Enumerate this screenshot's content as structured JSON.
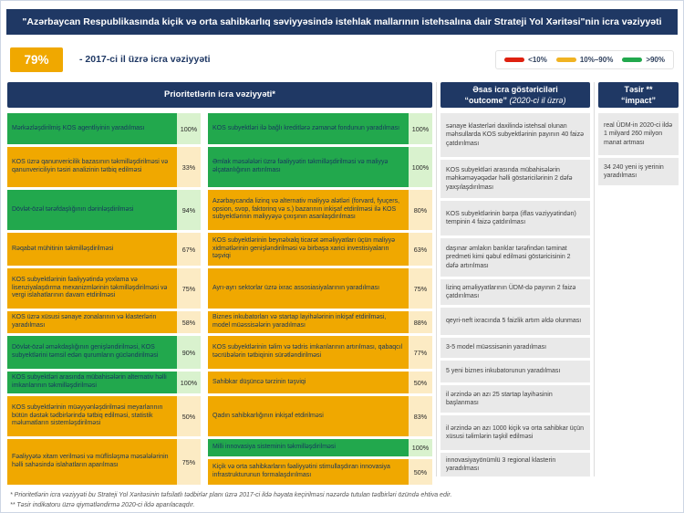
{
  "title": "\"Azərbaycan Respublikasında kiçik və orta sahibkarlıq səviyyəsində istehlak mallarının istehsalına dair Strateji Yol Xəritəsi\"nin icra vəziyyəti",
  "summary": {
    "value": "79%",
    "label": "- 2017-ci il üzrə icra vəziyyəti"
  },
  "colors": {
    "navy": "#1F3864",
    "green": "#22A84D",
    "green_light": "#D9F2CE",
    "yellow": "#F0A800",
    "yellow_light": "#FCEBC4",
    "red": "#DE2110",
    "gray_cell": "#E9E9E9"
  },
  "legend": [
    {
      "label": "<10%",
      "color": "#DE2110"
    },
    {
      "label": "10%–90%",
      "color": "#F0B323"
    },
    {
      "label": ">90%",
      "color": "#22A84D"
    }
  ],
  "table": {
    "header_left": "Prioritetlərin icra vəziyyəti*",
    "header_outcome_line1": "Əsas icra göstəriciləri",
    "header_outcome_quote": "“outcome”",
    "header_outcome_paren": "(2020-ci il üzrə)",
    "header_impact_line1": "Təsir **",
    "header_impact_line2": "“impact”",
    "priority_rows": [
      {
        "left": {
          "text": "Mərkəzləşdirilmiş KOS agentliyinin yaradılması",
          "pct": "100%",
          "status": "green"
        },
        "right": [
          {
            "text": "KOS subyektləri ilə bağlı kreditlərə zəmanət fondunun yaradılması",
            "pct": "100%",
            "status": "green"
          }
        ]
      },
      {
        "left": {
          "text": "KOS üzrə qanunvericilik bazasının təkmilləşdirilməsi və qanunvericiliyin təsiri analizinin tətbiq edilməsi",
          "pct": "33%",
          "status": "yellow"
        },
        "right": [
          {
            "text": "Əmlak məsələləri üzrə fəaliyyətin təkmilləşdirilməsi və maliyyə əlçatanlığının artırılması",
            "pct": "100%",
            "status": "green"
          }
        ]
      },
      {
        "left": {
          "text": "Dövlət-özəl tərəfdaşlığının dərinləşdirilməsi",
          "pct": "94%",
          "status": "green"
        },
        "right": [
          {
            "text": "Azərbaycanda lizinq və alternativ maliyyə alətləri (forvard, fyuçers, opsion, svop, faktorinq və s.) bazarının inkişaf etdirilməsi ilə KOS subyektlərinin maliyyəyə çıxışının asanlaşdırılması",
            "pct": "80%",
            "status": "yellow"
          }
        ]
      },
      {
        "left": {
          "text": "Rəqabət mühitinin təkmilləşdirilməsi",
          "pct": "67%",
          "status": "yellow"
        },
        "right": [
          {
            "text": "KOS subyektlərinin beynəlxalq ticarət əməliyyatları üçün maliyyə xidmətlərinin genişləndirilməsi və birbaşa xarici investisiyaların təşviqi",
            "pct": "63%",
            "status": "yellow"
          }
        ]
      },
      {
        "left": {
          "text": "KOS subyektlərinin fəaliyyətində yoxlama və lisenziyalaşdırma mexanizmlərinin təkmilləşdirilməsi və vergi islahatlarının davam etdirilməsi",
          "pct": "75%",
          "status": "yellow"
        },
        "right": [
          {
            "text": "Ayrı-ayrı sektorlar üzrə ixrac assosiasiyalarının yaradılması",
            "pct": "75%",
            "status": "yellow"
          }
        ]
      },
      {
        "left": {
          "text": "KOS üzrə xüsusi sənaye zonalarının və klasterlərin yaradılması",
          "pct": "58%",
          "status": "yellow"
        },
        "right": [
          {
            "text": "Biznes inkubatorları və startap layihələrinin inkişaf etdirilməsi, model müəssisələrin yaradılması",
            "pct": "88%",
            "status": "yellow"
          }
        ]
      },
      {
        "left": {
          "text": "Dövlət-özəl əməkdaşlığının genişləndirilməsi, KOS subyektlərini təmsil edən qurumların gücləndirilməsi",
          "pct": "90%",
          "status": "green"
        },
        "right": [
          {
            "text": "KOS subyektlərinin təlim və tədris imkanlarının artırılması, qabaqcıl təcrübələrin tətbiqinin sürətləndirilməsi",
            "pct": "77%",
            "status": "yellow"
          }
        ]
      },
      {
        "left": {
          "text": "KOS subyektləri arasında mübahisələrin alternativ həlli imkanlarının təkmilləşdirilməsi",
          "pct": "100%",
          "status": "green"
        },
        "right": [
          {
            "text": "Sahibkar düşüncə tərzinin təşviqi",
            "pct": "50%",
            "status": "yellow"
          }
        ]
      },
      {
        "left": {
          "text": "KOS subyektlərinin müəyyənləşdirilməsi meyarlarının bütün dəstək tədbirlərində tətbiq edilməsi, statistik məlumatların sistemləşdirilməsi",
          "pct": "50%",
          "status": "yellow"
        },
        "right": [
          {
            "text": "Qadın sahibkarlığının inkişaf etdirilməsi",
            "pct": "83%",
            "status": "yellow"
          }
        ]
      },
      {
        "left": {
          "text": "Fəaliyyətə xitam verilməsi və müflisləşmə məsələlərinin həlli sahəsində islahatların aparılması",
          "pct": "75%",
          "status": "yellow"
        },
        "right": [
          {
            "text": "Milli innovasiya sisteminin təkmilləşdirilməsi",
            "pct": "100%",
            "status": "green"
          },
          {
            "text": "Kiçik və orta sahibkarların fəaliyyətini stimullaşdıran innovasiya infrastrukturunun formalaşdırılması",
            "pct": "50%",
            "status": "yellow"
          }
        ]
      }
    ],
    "outcome": [
      "sənaye klasterləri daxilində istehsal olunan məhsullarda KOS subyektlərinin payının 40 faizə çatdırılması",
      "KOS subyektləri arasında mübahisələrin məhkəməyəqədər həlli göstəricilərinin 2 dəfə yaxşılaşdırılması",
      "KOS subyektlərinin bərpa (iflas vəziyyətindən) tempinin 4 faizə çatdırılması",
      "daşınar əmlakın banklar tərəfindən təminat predmeti kimi qəbul edilməsi göstəricisinin 2 dəfə artırılması",
      "lizinq əməliyyatlarının ÜDM-də payının 2 faizə çatdırılması",
      "qeyri-neft ixracında 5 faizlik artım əldə olunması",
      "3-5 model müəssisənin yaradılması",
      "5 yeni biznes inkubatorunun yaradılması",
      "il ərzində ən azı 25 startap layihəsinin başlanması",
      "il ərzində ən azı 1000 kiçik və orta sahibkar üçün xüsusi təlimlərin təşkil edilməsi",
      "innovasiyayönümlü 3 regional klasterin yaradılması"
    ],
    "impact": [
      "real ÜDM-in 2020-ci ildə 1 milyard 260 milyon manat artması",
      "34 240 yeni iş yerinin yaradılması"
    ]
  },
  "footnotes": [
    "* Prioritetlərin icra vəziyyəti bu Strateji Yol Xəritəsinin təfsilatlı tədbirlər planı üzrə 2017-ci ildə həyata keçirilməsi nəzərdə tutulan tədbirləri özündə ehtiva edir.",
    "** Təsir indikatoru üzrə qiymətləndirmə 2020-ci ildə aparılacaqdır."
  ]
}
